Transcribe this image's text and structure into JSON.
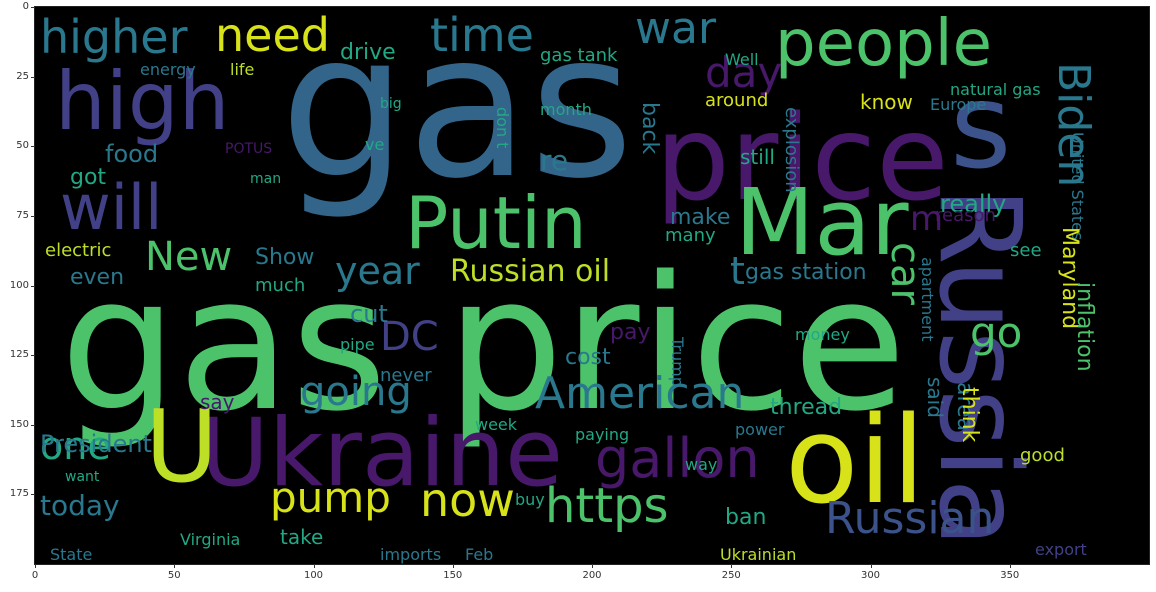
{
  "chart_data": {
    "type": "wordcloud",
    "background": "#000000",
    "x_range": [
      0,
      400
    ],
    "y_range": [
      0,
      200
    ],
    "x_ticks": [
      "0",
      "50",
      "100",
      "150",
      "200",
      "250",
      "300",
      "350"
    ],
    "y_ticks": [
      "0",
      "25",
      "50",
      "75",
      "100",
      "125",
      "150",
      "175"
    ],
    "colors": {
      "teal_blue": "#33658a",
      "purple": "#48186a",
      "indigo": "#424086",
      "green": "#4cc36b",
      "teal": "#2a788e",
      "lime": "#bddf26",
      "cyan": "#22a884",
      "yellow": "#d8e219",
      "slate": "#3b528b"
    },
    "words": [
      {
        "text": "gas",
        "color": "#33658a",
        "size": 200
      },
      {
        "text": "gas price",
        "color": "#4cc36b",
        "size": 185
      },
      {
        "text": "price",
        "color": "#48186a",
        "size": 118
      },
      {
        "text": "s",
        "color": "#3b528b",
        "size": 118
      },
      {
        "text": "Russia",
        "color": "#424086",
        "size": 112
      },
      {
        "text": "oil",
        "color": "#d8e219",
        "size": 120
      },
      {
        "text": "Ukraine",
        "color": "#48186a",
        "size": 94
      },
      {
        "text": "U",
        "color": "#bddf26",
        "size": 100
      },
      {
        "text": "Mar",
        "color": "#4cc36b",
        "size": 92
      },
      {
        "text": "high",
        "color": "#424086",
        "size": 80
      },
      {
        "text": "Putin",
        "color": "#4cc36b",
        "size": 72
      },
      {
        "text": "people",
        "color": "#4cc36b",
        "size": 64
      },
      {
        "text": "will",
        "color": "#424086",
        "size": 62
      },
      {
        "text": "higher",
        "color": "#2a788e",
        "size": 46
      },
      {
        "text": "need",
        "color": "#d8e219",
        "size": 46
      },
      {
        "text": "time",
        "color": "#2a788e",
        "size": 46
      },
      {
        "text": "war",
        "color": "#2a788e",
        "size": 44
      },
      {
        "text": "day",
        "color": "#48186a",
        "size": 42
      },
      {
        "text": "Biden",
        "color": "#2a788e",
        "size": 44
      },
      {
        "text": "gallon",
        "color": "#48186a",
        "size": 54
      },
      {
        "text": "https",
        "color": "#4cc36b",
        "size": 48
      },
      {
        "text": "now",
        "color": "#d8e219",
        "size": 46
      },
      {
        "text": "pump",
        "color": "#d8e219",
        "size": 42
      },
      {
        "text": "going",
        "color": "#2a788e",
        "size": 40
      },
      {
        "text": "American",
        "color": "#2a788e",
        "size": 44
      },
      {
        "text": "Russian",
        "color": "#3b528b",
        "size": 44
      },
      {
        "text": "New",
        "color": "#4cc36b",
        "size": 40
      },
      {
        "text": "year",
        "color": "#2a788e",
        "size": 38
      },
      {
        "text": "Russian oil",
        "color": "#bddf26",
        "size": 30
      },
      {
        "text": "car",
        "color": "#4cc36b",
        "size": 40
      },
      {
        "text": "go",
        "color": "#4cc36b",
        "size": 42
      },
      {
        "text": "DC",
        "color": "#424086",
        "size": 40
      },
      {
        "text": "m",
        "color": "#48186a",
        "size": 34
      },
      {
        "text": "t",
        "color": "#2a788e",
        "size": 38
      },
      {
        "text": "one",
        "color": "#22a884",
        "size": 38
      },
      {
        "text": "today",
        "color": "#2a788e",
        "size": 28
      },
      {
        "text": "President",
        "color": "#2a788e",
        "size": 24
      },
      {
        "text": "food",
        "color": "#2a788e",
        "size": 24
      },
      {
        "text": "got",
        "color": "#22a884",
        "size": 22
      },
      {
        "text": "even",
        "color": "#2a788e",
        "size": 22
      },
      {
        "text": "electric",
        "color": "#bddf26",
        "size": 18
      },
      {
        "text": "Show",
        "color": "#2a788e",
        "size": 22
      },
      {
        "text": "much",
        "color": "#22a884",
        "size": 18
      },
      {
        "text": "cut",
        "color": "#2a788e",
        "size": 24
      },
      {
        "text": "re",
        "color": "#2a788e",
        "size": 28
      },
      {
        "text": "back",
        "color": "#2a788e",
        "size": 22
      },
      {
        "text": "drive",
        "color": "#22a884",
        "size": 22
      },
      {
        "text": "gas tank",
        "color": "#22a884",
        "size": 18
      },
      {
        "text": "energy",
        "color": "#2a788e",
        "size": 16
      },
      {
        "text": "life",
        "color": "#bddf26",
        "size": 16
      },
      {
        "text": "month",
        "color": "#22a884",
        "size": 16
      },
      {
        "text": "Well",
        "color": "#22a884",
        "size": 16
      },
      {
        "text": "around",
        "color": "#d8e219",
        "size": 18
      },
      {
        "text": "know",
        "color": "#d8e219",
        "size": 20
      },
      {
        "text": "Europe",
        "color": "#2a788e",
        "size": 16
      },
      {
        "text": "natural gas",
        "color": "#22a884",
        "size": 16
      },
      {
        "text": "United States",
        "color": "#2a788e",
        "size": 16
      },
      {
        "text": "explosion",
        "color": "#2a788e",
        "size": 18
      },
      {
        "text": "still",
        "color": "#22a884",
        "size": 20
      },
      {
        "text": "really",
        "color": "#22a884",
        "size": 24
      },
      {
        "text": "make",
        "color": "#2a788e",
        "size": 22
      },
      {
        "text": "many",
        "color": "#22a884",
        "size": 18
      },
      {
        "text": "gas station",
        "color": "#2a788e",
        "size": 22
      },
      {
        "text": "reason",
        "color": "#48186a",
        "size": 18
      },
      {
        "text": "see",
        "color": "#22a884",
        "size": 18
      },
      {
        "text": "Maryland",
        "color": "#d8e219",
        "size": 22
      },
      {
        "text": "inflation",
        "color": "#4cc36b",
        "size": 22
      },
      {
        "text": "apartment",
        "color": "#2a788e",
        "size": 16
      },
      {
        "text": "area",
        "color": "#2a788e",
        "size": 22
      },
      {
        "text": "think",
        "color": "#d8e219",
        "size": 22
      },
      {
        "text": "good",
        "color": "#bddf26",
        "size": 18
      },
      {
        "text": "said",
        "color": "#2a788e",
        "size": 20
      },
      {
        "text": "thread",
        "color": "#22a884",
        "size": 22
      },
      {
        "text": "power",
        "color": "#2a788e",
        "size": 16
      },
      {
        "text": "money",
        "color": "#22a884",
        "size": 16
      },
      {
        "text": "pay",
        "color": "#48186a",
        "size": 22
      },
      {
        "text": "cost",
        "color": "#2a788e",
        "size": 22
      },
      {
        "text": "Trump",
        "color": "#2a788e",
        "size": 16
      },
      {
        "text": "pipe",
        "color": "#22a884",
        "size": 16
      },
      {
        "text": "never",
        "color": "#2a788e",
        "size": 18
      },
      {
        "text": "say",
        "color": "#48186a",
        "size": 20
      },
      {
        "text": "week",
        "color": "#22a884",
        "size": 16
      },
      {
        "text": "paying",
        "color": "#22a884",
        "size": 16
      },
      {
        "text": "way",
        "color": "#22a884",
        "size": 16
      },
      {
        "text": "want",
        "color": "#22a884",
        "size": 14
      },
      {
        "text": "ban",
        "color": "#22a884",
        "size": 22
      },
      {
        "text": "buy",
        "color": "#22a884",
        "size": 16
      },
      {
        "text": "take",
        "color": "#22a884",
        "size": 20
      },
      {
        "text": "Virginia",
        "color": "#22a884",
        "size": 16
      },
      {
        "text": "State",
        "color": "#2a788e",
        "size": 16
      },
      {
        "text": "imports",
        "color": "#2a788e",
        "size": 16
      },
      {
        "text": "Feb",
        "color": "#2a788e",
        "size": 16
      },
      {
        "text": "Ukrainian",
        "color": "#bddf26",
        "size": 16
      },
      {
        "text": "export",
        "color": "#424086",
        "size": 16
      },
      {
        "text": "POTUS",
        "color": "#48186a",
        "size": 14
      },
      {
        "text": "man",
        "color": "#22a884",
        "size": 14
      },
      {
        "text": "ve",
        "color": "#22a884",
        "size": 16
      },
      {
        "text": "big",
        "color": "#22a884",
        "size": 14
      },
      {
        "text": "don t",
        "color": "#22a884",
        "size": 16
      }
    ]
  }
}
